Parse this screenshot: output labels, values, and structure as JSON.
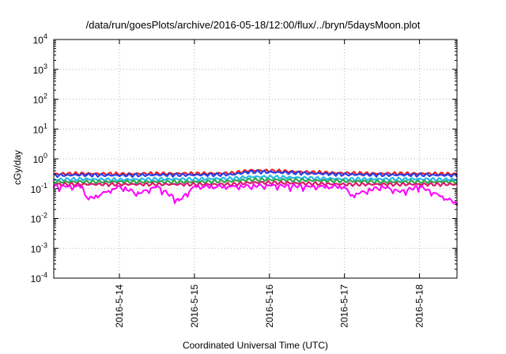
{
  "chart_data": {
    "type": "line",
    "title": "/data/run/goesPlots/archive/2016-05-18/12:00/flux/../bryn/5daysMoon.plot",
    "xlabel": "Coordinated Universal Time (UTC)",
    "ylabel": "cGy/day",
    "y_scale": "log",
    "ylim": [
      0.0001,
      10000
    ],
    "y_ticks": [
      {
        "base": "10",
        "exp": "-4",
        "value": 0.0001
      },
      {
        "base": "10",
        "exp": "-3",
        "value": 0.001
      },
      {
        "base": "10",
        "exp": "-2",
        "value": 0.01
      },
      {
        "base": "10",
        "exp": "-1",
        "value": 0.1
      },
      {
        "base": "10",
        "exp": "0",
        "value": 1
      },
      {
        "base": "10",
        "exp": "1",
        "value": 10
      },
      {
        "base": "10",
        "exp": "2",
        "value": 100
      },
      {
        "base": "10",
        "exp": "3",
        "value": 1000
      },
      {
        "base": "10",
        "exp": "4",
        "value": 10000
      }
    ],
    "xlim": [
      "2016-05-13T03:00",
      "2016-05-18T12:00"
    ],
    "x_ticks": [
      "2016-5-14",
      "2016-5-15",
      "2016-5-16",
      "2016-5-17",
      "2016-5-18"
    ],
    "grid": true,
    "legend": "none",
    "series": [
      {
        "color": "#ee1c1c",
        "x": [
          "2016-05-13T03:00",
          "2016-05-13T12:00",
          "2016-05-14T00:00",
          "2016-05-14T12:00",
          "2016-05-15T00:00",
          "2016-05-15T12:00",
          "2016-05-15T18:00",
          "2016-05-16T00:00",
          "2016-05-16T12:00",
          "2016-05-17T00:00",
          "2016-05-17T12:00",
          "2016-05-18T00:00",
          "2016-05-18T12:00"
        ],
        "values": [
          0.31,
          0.32,
          0.31,
          0.32,
          0.32,
          0.33,
          0.41,
          0.4,
          0.36,
          0.33,
          0.32,
          0.32,
          0.31
        ]
      },
      {
        "color": "#2a3fe8",
        "x": [
          "2016-05-13T03:00",
          "2016-05-13T12:00",
          "2016-05-14T00:00",
          "2016-05-14T12:00",
          "2016-05-15T00:00",
          "2016-05-15T12:00",
          "2016-05-15T18:00",
          "2016-05-16T00:00",
          "2016-05-16T12:00",
          "2016-05-17T00:00",
          "2016-05-17T12:00",
          "2016-05-18T00:00",
          "2016-05-18T12:00"
        ],
        "values": [
          0.28,
          0.29,
          0.28,
          0.29,
          0.29,
          0.3,
          0.37,
          0.36,
          0.33,
          0.3,
          0.29,
          0.29,
          0.28
        ]
      },
      {
        "color": "#29b8e8",
        "x": [
          "2016-05-13T03:00",
          "2016-05-13T12:00",
          "2016-05-14T00:00",
          "2016-05-14T12:00",
          "2016-05-15T00:00",
          "2016-05-15T12:00",
          "2016-05-15T18:00",
          "2016-05-16T00:00",
          "2016-05-16T12:00",
          "2016-05-17T00:00",
          "2016-05-17T12:00",
          "2016-05-18T00:00",
          "2016-05-18T12:00"
        ],
        "values": [
          0.2,
          0.21,
          0.2,
          0.21,
          0.21,
          0.22,
          0.25,
          0.25,
          0.23,
          0.21,
          0.21,
          0.21,
          0.2
        ]
      },
      {
        "color": "#2fa84f",
        "x": [
          "2016-05-13T03:00",
          "2016-05-13T12:00",
          "2016-05-14T00:00",
          "2016-05-14T12:00",
          "2016-05-15T00:00",
          "2016-05-15T12:00",
          "2016-05-15T18:00",
          "2016-05-16T00:00",
          "2016-05-16T12:00",
          "2016-05-17T00:00",
          "2016-05-17T12:00",
          "2016-05-18T00:00",
          "2016-05-18T12:00"
        ],
        "values": [
          0.17,
          0.17,
          0.17,
          0.17,
          0.17,
          0.18,
          0.2,
          0.2,
          0.19,
          0.18,
          0.17,
          0.17,
          0.17
        ]
      },
      {
        "color": "#d91b6b",
        "x": [
          "2016-05-13T03:00",
          "2016-05-13T12:00",
          "2016-05-14T00:00",
          "2016-05-14T12:00",
          "2016-05-15T00:00",
          "2016-05-15T12:00",
          "2016-05-15T18:00",
          "2016-05-16T00:00",
          "2016-05-16T12:00",
          "2016-05-17T00:00",
          "2016-05-17T12:00",
          "2016-05-18T00:00",
          "2016-05-18T12:00"
        ],
        "values": [
          0.14,
          0.14,
          0.14,
          0.14,
          0.14,
          0.14,
          0.16,
          0.16,
          0.15,
          0.14,
          0.14,
          0.14,
          0.14
        ]
      },
      {
        "color": "#ff00ff",
        "x": [
          "2016-05-13T03:00",
          "2016-05-13T12:00",
          "2016-05-13T14:00",
          "2016-05-14T00:00",
          "2016-05-14T06:00",
          "2016-05-14T12:00",
          "2016-05-14T19:00",
          "2016-05-15T00:00",
          "2016-05-15T12:00",
          "2016-05-16T00:00",
          "2016-05-16T12:00",
          "2016-05-17T00:00",
          "2016-05-17T02:00",
          "2016-05-17T12:00",
          "2016-05-17T18:00",
          "2016-05-18T00:00",
          "2016-05-18T12:00"
        ],
        "values": [
          0.12,
          0.12,
          0.045,
          0.12,
          0.07,
          0.12,
          0.04,
          0.12,
          0.12,
          0.13,
          0.12,
          0.12,
          0.06,
          0.12,
          0.08,
          0.12,
          0.033
        ]
      }
    ]
  }
}
